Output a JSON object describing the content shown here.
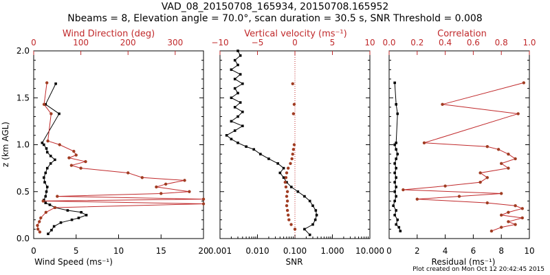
{
  "title_line1": "VAD_08_20150708_165934, 20150708.165952",
  "title_line2": "Nbeams = 8, Elevation angle = 70.0°, scan duration = 30.5 s, SNR Threshold = 0.008",
  "credit": "Plot created on Mon Oct 12 20:42:45 2015",
  "colors": {
    "primary": "#000000",
    "secondary": "#c0282a",
    "secondary_marker": "#a03c22"
  },
  "chart_data": [
    {
      "type": "line",
      "ylabel": "z (km AGL)",
      "ylim": [
        0,
        2
      ],
      "yticks": [
        "0.0",
        "0.5",
        "1.0",
        "1.5",
        "2.0"
      ],
      "bottom_axis": {
        "label": "Wind Speed (ms⁻¹)",
        "range": [
          0,
          20
        ],
        "ticks": [
          "0",
          "5",
          "10",
          "15",
          "20"
        ]
      },
      "top_axis": {
        "label": "Wind Direction (deg)",
        "range": [
          0,
          360
        ],
        "ticks": [
          "0",
          "100",
          "200",
          "300"
        ]
      },
      "series": [
        {
          "axis": "bottom",
          "color": "#000000",
          "style": "line+square",
          "points": [
            [
              1.7,
              0.05
            ],
            [
              2.1,
              0.09
            ],
            [
              2.4,
              0.13
            ],
            [
              3.2,
              0.17
            ],
            [
              4.5,
              0.2
            ],
            [
              5.3,
              0.22
            ],
            [
              6.2,
              0.25
            ],
            [
              5.6,
              0.28
            ],
            [
              4.0,
              0.3
            ],
            [
              2.5,
              0.33
            ],
            [
              1.9,
              0.36
            ],
            [
              1.4,
              0.38
            ],
            [
              1.2,
              0.41
            ],
            [
              1.4,
              0.45
            ],
            [
              1.5,
              0.5
            ],
            [
              1.6,
              0.55
            ],
            [
              1.3,
              0.6
            ],
            [
              1.2,
              0.65
            ],
            [
              1.4,
              0.7
            ],
            [
              1.6,
              0.75
            ],
            [
              2.0,
              0.8
            ],
            [
              2.5,
              0.84
            ],
            [
              2.0,
              0.88
            ],
            [
              1.6,
              0.92
            ],
            [
              1.5,
              0.96
            ],
            [
              1.2,
              1.0
            ],
            [
              1.0,
              1.02
            ],
            [
              3.0,
              1.33
            ],
            [
              1.4,
              1.43
            ],
            [
              2.6,
              1.65
            ]
          ]
        },
        {
          "axis": "top",
          "color": "#c0282a",
          "style": "line+circle",
          "points": [
            [
              13,
              0.07
            ],
            [
              9,
              0.1
            ],
            [
              8,
              0.14
            ],
            [
              12,
              0.18
            ],
            [
              15,
              0.22
            ],
            [
              26,
              0.28
            ],
            [
              45,
              0.33
            ],
            [
              360,
              0.37
            ],
            [
              20,
              0.4
            ],
            [
              360,
              0.42
            ],
            [
              50,
              0.45
            ],
            [
              270,
              0.48
            ],
            [
              330,
              0.5
            ],
            [
              260,
              0.55
            ],
            [
              280,
              0.58
            ],
            [
              320,
              0.62
            ],
            [
              230,
              0.65
            ],
            [
              200,
              0.7
            ],
            [
              100,
              0.75
            ],
            [
              80,
              0.78
            ],
            [
              110,
              0.82
            ],
            [
              75,
              0.86
            ],
            [
              90,
              0.89
            ],
            [
              85,
              0.93
            ],
            [
              55,
              1.0
            ],
            [
              30,
              1.04
            ],
            [
              37,
              1.33
            ],
            [
              22,
              1.43
            ],
            [
              28,
              1.66
            ]
          ]
        }
      ]
    },
    {
      "type": "line",
      "bottom_axis": {
        "label": "SNR",
        "scale": "log",
        "range": [
          0.001,
          10
        ],
        "ticks": [
          "0.001",
          "0.010",
          "0.100",
          "1.000",
          "10.000"
        ]
      },
      "top_axis": {
        "label": "Vertical velocity (ms⁻¹)",
        "range": [
          -10,
          10
        ],
        "ticks": [
          "−10",
          "−5",
          "0",
          "5",
          "10"
        ]
      },
      "reference_line": {
        "axis": "top",
        "value": 0,
        "style": "dotted"
      },
      "series": [
        {
          "axis": "bottom",
          "color": "#000000",
          "style": "line+square",
          "points": [
            [
              0.25,
              0.04
            ],
            [
              0.18,
              0.1
            ],
            [
              0.3,
              0.15
            ],
            [
              0.35,
              0.2
            ],
            [
              0.38,
              0.25
            ],
            [
              0.36,
              0.3
            ],
            [
              0.3,
              0.35
            ],
            [
              0.25,
              0.4
            ],
            [
              0.18,
              0.45
            ],
            [
              0.12,
              0.5
            ],
            [
              0.08,
              0.55
            ],
            [
              0.06,
              0.6
            ],
            [
              0.05,
              0.65
            ],
            [
              0.04,
              0.7
            ],
            [
              0.05,
              0.75
            ],
            [
              0.035,
              0.8
            ],
            [
              0.02,
              0.85
            ],
            [
              0.012,
              0.9
            ],
            [
              0.008,
              0.95
            ],
            [
              0.005,
              0.98
            ],
            [
              0.003,
              1.02
            ],
            [
              0.002,
              1.06
            ],
            [
              0.0015,
              1.1
            ],
            [
              0.0025,
              1.15
            ],
            [
              0.004,
              1.2
            ],
            [
              0.002,
              1.25
            ],
            [
              0.003,
              1.3
            ],
            [
              0.004,
              1.35
            ],
            [
              0.0025,
              1.4
            ],
            [
              0.0035,
              1.45
            ],
            [
              0.002,
              1.5
            ],
            [
              0.003,
              1.55
            ],
            [
              0.0025,
              1.6
            ],
            [
              0.004,
              1.65
            ],
            [
              0.0025,
              1.7
            ],
            [
              0.0035,
              1.75
            ],
            [
              0.002,
              1.8
            ],
            [
              0.003,
              1.85
            ],
            [
              0.0025,
              1.9
            ],
            [
              0.0035,
              1.95
            ],
            [
              0.003,
              2.0
            ]
          ]
        },
        {
          "axis": "top",
          "color": "#a03c22",
          "style": "circle",
          "points": [
            [
              0.0,
              0.1
            ],
            [
              -0.5,
              0.15
            ],
            [
              -0.8,
              0.2
            ],
            [
              -0.9,
              0.25
            ],
            [
              -1.0,
              0.3
            ],
            [
              -1.1,
              0.35
            ],
            [
              -1.0,
              0.4
            ],
            [
              -1.1,
              0.45
            ],
            [
              -1.0,
              0.5
            ],
            [
              -1.2,
              0.55
            ],
            [
              -1.3,
              0.6
            ],
            [
              -1.2,
              0.65
            ],
            [
              -1.1,
              0.7
            ],
            [
              -0.9,
              0.75
            ],
            [
              -0.6,
              0.8
            ],
            [
              -0.4,
              0.85
            ],
            [
              -0.3,
              0.9
            ],
            [
              -0.2,
              0.95
            ],
            [
              -0.1,
              1.0
            ],
            [
              -0.2,
              1.33
            ],
            [
              -0.1,
              1.43
            ],
            [
              -0.3,
              1.65
            ]
          ]
        }
      ]
    },
    {
      "type": "line",
      "bottom_axis": {
        "label": "Residual (ms⁻¹)",
        "range": [
          0,
          10
        ],
        "ticks": [
          "0",
          "2",
          "4",
          "6",
          "8",
          "10"
        ]
      },
      "top_axis": {
        "label": "Correlation",
        "range": [
          0,
          1
        ],
        "ticks": [
          "0.0",
          "0.2",
          "0.4",
          "0.6",
          "0.8",
          "1.0"
        ]
      },
      "series": [
        {
          "axis": "bottom",
          "color": "#000000",
          "style": "line+square",
          "points": [
            [
              0.8,
              0.08
            ],
            [
              0.7,
              0.12
            ],
            [
              0.5,
              0.15
            ],
            [
              0.6,
              0.2
            ],
            [
              0.4,
              0.25
            ],
            [
              0.5,
              0.3
            ],
            [
              0.3,
              0.35
            ],
            [
              0.4,
              0.4
            ],
            [
              0.5,
              0.45
            ],
            [
              0.4,
              0.5
            ],
            [
              0.5,
              0.55
            ],
            [
              0.4,
              0.6
            ],
            [
              0.5,
              0.65
            ],
            [
              0.4,
              0.7
            ],
            [
              0.5,
              0.75
            ],
            [
              0.4,
              0.8
            ],
            [
              0.5,
              0.85
            ],
            [
              0.6,
              0.9
            ],
            [
              0.5,
              0.95
            ],
            [
              0.4,
              1.0
            ],
            [
              0.5,
              1.02
            ],
            [
              0.6,
              1.33
            ],
            [
              0.5,
              1.43
            ],
            [
              0.4,
              1.66
            ]
          ]
        },
        {
          "axis": "top",
          "color": "#c0282a",
          "style": "line+circle",
          "points": [
            [
              0.73,
              0.08
            ],
            [
              0.8,
              0.12
            ],
            [
              0.9,
              0.15
            ],
            [
              0.85,
              0.18
            ],
            [
              0.95,
              0.22
            ],
            [
              0.8,
              0.25
            ],
            [
              0.85,
              0.28
            ],
            [
              0.95,
              0.32
            ],
            [
              0.9,
              0.35
            ],
            [
              0.7,
              0.38
            ],
            [
              0.2,
              0.42
            ],
            [
              0.5,
              0.45
            ],
            [
              0.8,
              0.48
            ],
            [
              0.1,
              0.52
            ],
            [
              0.4,
              0.56
            ],
            [
              0.65,
              0.6
            ],
            [
              0.7,
              0.65
            ],
            [
              0.65,
              0.7
            ],
            [
              0.85,
              0.75
            ],
            [
              0.8,
              0.8
            ],
            [
              0.9,
              0.85
            ],
            [
              0.85,
              0.9
            ],
            [
              0.78,
              0.95
            ],
            [
              0.7,
              0.98
            ],
            [
              0.25,
              1.02
            ],
            [
              0.92,
              1.33
            ],
            [
              0.38,
              1.43
            ],
            [
              0.96,
              1.66
            ]
          ]
        }
      ]
    }
  ]
}
